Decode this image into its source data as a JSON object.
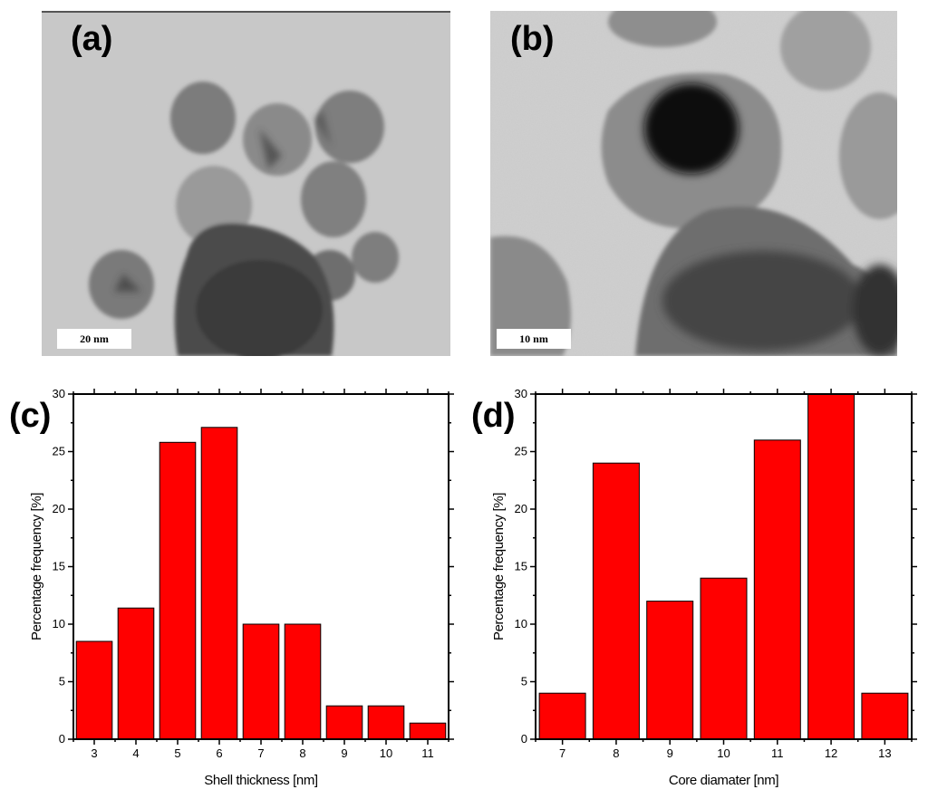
{
  "panels": {
    "a": {
      "letter": "(a)",
      "scale_label": "20 nm"
    },
    "b": {
      "letter": "(b)",
      "scale_label": "10 nm"
    },
    "c": {
      "letter": "(c)"
    },
    "d": {
      "letter": "(d)"
    }
  },
  "colors": {
    "bar": "#ff0000",
    "bar_edge": "#000000",
    "axis": "#000000"
  },
  "chart_data": [
    {
      "panel": "c",
      "type": "bar",
      "categories": [
        "3",
        "4",
        "5",
        "6",
        "7",
        "8",
        "9",
        "10",
        "11"
      ],
      "values": [
        8.5,
        11.4,
        25.8,
        27.1,
        10.0,
        10.0,
        2.9,
        2.9,
        1.4
      ],
      "xlabel": "Shell thickness [nm]",
      "ylabel": "Percentage frequency [%]",
      "ylim": [
        0,
        30
      ],
      "yticks": [
        0,
        5,
        10,
        15,
        20,
        25,
        30
      ],
      "grid": false
    },
    {
      "panel": "d",
      "type": "bar",
      "categories": [
        "7",
        "8",
        "9",
        "10",
        "11",
        "12",
        "13"
      ],
      "values": [
        4,
        24,
        12,
        14,
        26,
        30,
        4
      ],
      "xlabel": "Core diamater [nm]",
      "ylabel": "Percentage frequency [%]",
      "ylim": [
        0,
        30
      ],
      "yticks": [
        0,
        5,
        10,
        15,
        20,
        25,
        30
      ],
      "grid": false
    }
  ]
}
